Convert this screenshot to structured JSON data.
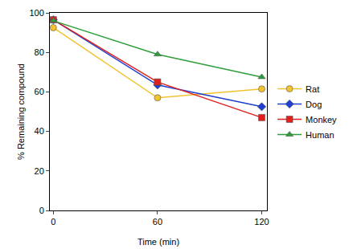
{
  "chart_data": {
    "type": "line",
    "x_label": "Time (min)",
    "y_label": "% Remaining compound",
    "x": [
      0,
      60,
      120
    ],
    "series": [
      {
        "name": "Rat",
        "color": "#f2c230",
        "marker": "circle",
        "values": [
          92.5,
          57,
          61.5
        ]
      },
      {
        "name": "Dog",
        "color": "#1f3fd0",
        "marker": "diamond",
        "values": [
          96.5,
          63.5,
          52.5
        ]
      },
      {
        "name": "Monkey",
        "color": "#e0201c",
        "marker": "square",
        "values": [
          96.5,
          65,
          47
        ]
      },
      {
        "name": "Human",
        "color": "#2e9e3a",
        "marker": "triangle-up",
        "values": [
          96,
          79,
          67.5
        ]
      }
    ],
    "xlim": [
      -2,
      123
    ],
    "xticks": [
      0,
      60,
      120
    ],
    "ylim": [
      0,
      100
    ],
    "yticks": [
      0,
      20,
      40,
      60,
      80,
      100
    ],
    "grid": false,
    "legend": "right"
  }
}
